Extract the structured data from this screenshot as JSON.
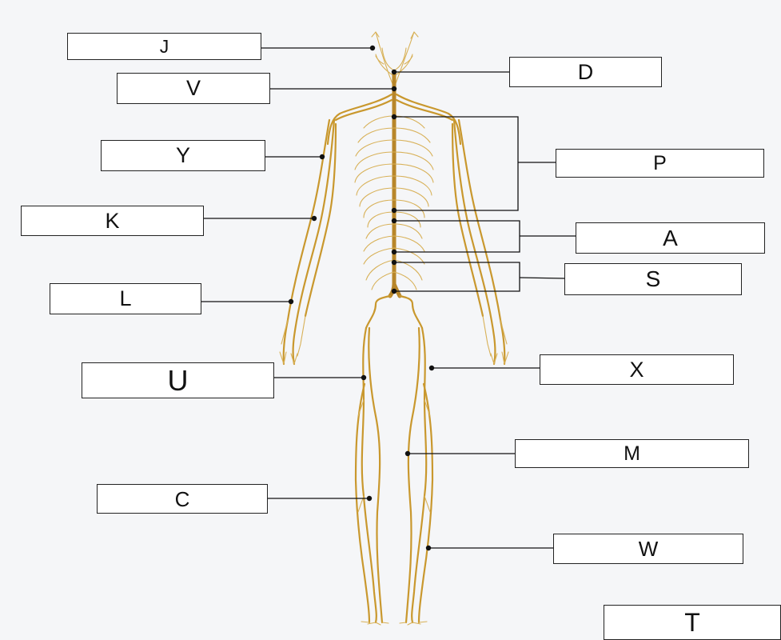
{
  "colors": {
    "nerve": "#c9982e",
    "nerve_light": "#d8b158",
    "spine": "#b8862a",
    "leader": "#111111",
    "label_fill": "#ffffff",
    "background": "#f5f6f8"
  },
  "labels": {
    "J": "J",
    "V": "V",
    "Y": "Y",
    "K": "K",
    "L": "L",
    "U": "U",
    "C": "C",
    "D": "D",
    "P": "P",
    "A": "A",
    "S": "S",
    "X": "X",
    "M": "M",
    "W": "W",
    "T": "T"
  }
}
